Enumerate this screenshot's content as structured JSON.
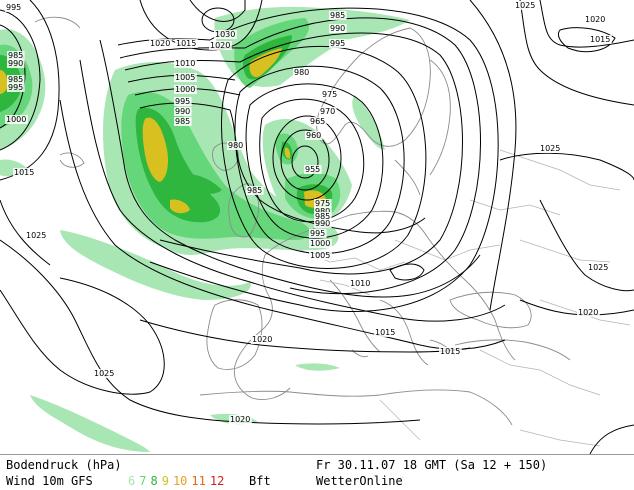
{
  "legend": {
    "pressure_label": "Bodendruck (hPa)",
    "wind_label": "Wind 10m GFS",
    "bft_unit": "Bft",
    "bft_scale": [
      {
        "value": "6",
        "color": "#a8e6b4"
      },
      {
        "value": "7",
        "color": "#66d67a"
      },
      {
        "value": "8",
        "color": "#2fb63f"
      },
      {
        "value": "9",
        "color": "#d8c020"
      },
      {
        "value": "10",
        "color": "#e8a020"
      },
      {
        "value": "11",
        "color": "#e06a10"
      },
      {
        "value": "12",
        "color": "#d02020"
      }
    ],
    "run_time": "Fr 30.11.07 18 GMT (Sa 12 + 150)",
    "provider": "WetterOnline"
  },
  "isobar_labels": [
    {
      "text": "995"
    },
    {
      "text": "1020"
    },
    {
      "text": "1015"
    },
    {
      "text": "1030"
    },
    {
      "text": "1020"
    },
    {
      "text": "985"
    },
    {
      "text": "990"
    },
    {
      "text": "995"
    },
    {
      "text": "1025"
    },
    {
      "text": "1020"
    },
    {
      "text": "1015"
    },
    {
      "text": "985"
    },
    {
      "text": "1010"
    },
    {
      "text": "1005"
    },
    {
      "text": "1000"
    },
    {
      "text": "995"
    },
    {
      "text": "990"
    },
    {
      "text": "985"
    },
    {
      "text": "980"
    },
    {
      "text": "975"
    },
    {
      "text": "970"
    },
    {
      "text": "965"
    },
    {
      "text": "960"
    },
    {
      "text": "980"
    },
    {
      "text": "955"
    },
    {
      "text": "1025"
    },
    {
      "text": "1015"
    },
    {
      "text": "985"
    },
    {
      "text": "975"
    },
    {
      "text": "980"
    },
    {
      "text": "985"
    },
    {
      "text": "990"
    },
    {
      "text": "995"
    },
    {
      "text": "1000"
    },
    {
      "text": "1005"
    },
    {
      "text": "1025"
    },
    {
      "text": "1010"
    },
    {
      "text": "1025"
    },
    {
      "text": "1020"
    },
    {
      "text": "1015"
    },
    {
      "text": "1015"
    },
    {
      "text": "1020"
    },
    {
      "text": "1025"
    },
    {
      "text": "1020"
    },
    {
      "text": "985"
    },
    {
      "text": "990"
    },
    {
      "text": "995"
    },
    {
      "text": "1000"
    }
  ],
  "colors": {
    "isobar": "#000000",
    "coast": "#8c8c8c",
    "wind6": "#a8e6b4",
    "wind7": "#66d67a",
    "wind8": "#2fb63f",
    "wind9": "#d8c020",
    "wind10": "#e8a020"
  }
}
